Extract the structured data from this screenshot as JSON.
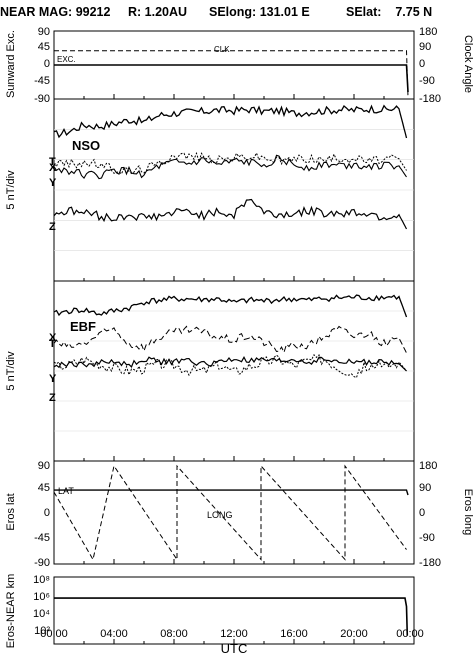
{
  "header": {
    "title": "NEAR MAG: 99212",
    "distance": "R: 1.20AU",
    "selong": "SElong: 131.01 E",
    "selat": "SElat:    7.75 N"
  },
  "x_axis": {
    "label": "UTC",
    "ticks": [
      "00:00",
      "04:00",
      "08:00",
      "12:00",
      "16:00",
      "20:00",
      "00:00"
    ]
  },
  "chart_data": [
    {
      "type": "line",
      "panel": "sunward-clock",
      "ylabel": "Sunward Exc.",
      "ylabel_right": "Clock Angle",
      "yticks": [
        "45",
        "0",
        "-45",
        "-90"
      ],
      "yticks_top": "90",
      "yticks_right": [
        "180",
        "90",
        "0",
        "-90",
        "-180"
      ],
      "ylim": [
        -90,
        90
      ],
      "x_hours": [
        0,
        23.5
      ],
      "series": [
        {
          "name": "EXC.",
          "values": [
            0,
            0
          ]
        },
        {
          "name": "CLK",
          "values": [
            39,
            39
          ]
        }
      ]
    },
    {
      "type": "line",
      "panel": "NSO",
      "label": "NSO",
      "ylabel": "5 nT/div",
      "x_hours": [
        0,
        1,
        2,
        3,
        4,
        5,
        6,
        7,
        8,
        9,
        10,
        11,
        12,
        13,
        14,
        15,
        16,
        17,
        18,
        19,
        20,
        21,
        22,
        23,
        23.5
      ],
      "series": [
        {
          "name": "T",
          "values": [
            22.5,
            23.0,
            24.0,
            23.8,
            24.2,
            24.8,
            24.5,
            25.5,
            25.8,
            26.0,
            26.1,
            26.3,
            26.2,
            26.4,
            26.1,
            26.2,
            25.8,
            26.0,
            26.2,
            26.4,
            26.3,
            26.5,
            26.4,
            26.5,
            22.0
          ]
        },
        {
          "name": "X",
          "values": [
            18.2,
            18.0,
            18.2,
            17.9,
            17.2,
            16.8,
            17.3,
            18.0,
            19.5,
            19.2,
            19.0,
            18.6,
            19.0,
            19.2,
            19.0,
            18.4,
            18.8,
            18.9,
            18.6,
            19.0,
            18.8,
            18.5,
            18.7,
            18.8,
            17.0
          ]
        },
        {
          "name": "Y",
          "values": [
            17.3,
            17.0,
            16.4,
            16.2,
            17.0,
            16.9,
            16.4,
            17.6,
            18.2,
            18.0,
            18.6,
            17.8,
            18.4,
            18.2,
            18.0,
            18.9,
            17.8,
            17.5,
            18.0,
            17.8,
            17.9,
            17.8,
            17.7,
            17.7,
            16.0
          ]
        },
        {
          "name": "Z",
          "values": [
            10.4,
            10.8,
            10.6,
            10.0,
            9.6,
            10.2,
            9.8,
            10.0,
            10.5,
            10.8,
            10.1,
            10.6,
            10.2,
            12.8,
            10.6,
            10.2,
            10.4,
            10.8,
            10.5,
            10.4,
            10.6,
            10.4,
            9.8,
            10.2,
            8.0
          ]
        }
      ]
    },
    {
      "type": "line",
      "panel": "EBF",
      "label": "EBF",
      "ylabel": "5 nT/div",
      "x_hours": [
        0,
        1,
        2,
        3,
        4,
        5,
        6,
        7,
        8,
        9,
        10,
        11,
        12,
        13,
        14,
        15,
        16,
        17,
        18,
        19,
        20,
        21,
        22,
        23,
        23.5
      ],
      "series": [
        {
          "name": "T",
          "values": [
            24.5,
            25.0,
            25.2,
            24.5,
            25.0,
            25.5,
            26.5,
            26.8,
            27.0,
            27.0,
            26.9,
            27.0,
            26.4,
            26.8,
            26.7,
            26.9,
            27.0,
            26.8,
            27.1,
            27.2,
            27.3,
            27.2,
            27.3,
            27.4,
            24.0
          ]
        },
        {
          "name": "X",
          "values": [
            19.8,
            19.0,
            19.5,
            21.0,
            22.0,
            19.5,
            19.0,
            20.6,
            21.5,
            21.8,
            21.5,
            20.5,
            20.2,
            20.9,
            19.8,
            18.4,
            19.3,
            19.2,
            20.8,
            22.0,
            20.8,
            21.4,
            19.5,
            20.5,
            18.0
          ]
        },
        {
          "name": "Y (dotted)",
          "values": [
            15.8,
            16.0,
            17.0,
            16.2,
            15.5,
            15.0,
            15.5,
            16.2,
            16.0,
            15.2,
            15.0,
            16.1,
            14.8,
            15.8,
            16.5,
            17.0,
            15.9,
            16.8,
            17.0,
            15.6,
            14.5,
            16.1,
            15.6,
            16.5,
            15.0
          ]
        },
        {
          "name": "Y",
          "values": [
            15.8,
            16.2,
            16.0,
            16.4,
            16.6,
            15.9,
            17.0,
            16.6,
            16.5,
            16.8,
            16.1,
            16.5,
            17.0,
            16.7,
            16.8,
            16.6,
            16.9,
            16.5,
            17.0,
            16.4,
            16.6,
            16.5,
            16.4,
            16.2,
            15.0
          ]
        }
      ]
    },
    {
      "type": "line",
      "panel": "eros-position",
      "ylabel": "Eros lat",
      "ylabel_right": "Eros long",
      "yticks": [
        "90",
        "45",
        "0",
        "-45",
        "-90"
      ],
      "yticks_right": [
        "180",
        "90",
        "0",
        "-90",
        "-180"
      ],
      "ylim": [
        -90,
        90
      ],
      "series": [
        {
          "name": "LAT",
          "x_hours": [
            0,
            23.5
          ],
          "values": [
            44,
            44
          ]
        },
        {
          "name": "LONG",
          "x_hours": [
            0,
            2.6,
            4.0,
            8.2,
            8.2,
            13.8,
            13.8,
            19.4,
            19.4,
            23.5
          ],
          "values_deg": [
            80,
            -178,
            180,
            -178,
            180,
            -178,
            180,
            -178,
            180,
            -140
          ]
        }
      ]
    },
    {
      "type": "line",
      "panel": "eros-near-distance",
      "ylabel": "Eros-NEAR km",
      "yscale": "log",
      "yticks": [
        "10⁸",
        "10⁶",
        "10⁴",
        "10²"
      ],
      "ylim": [
        10,
        1000000000.0
      ],
      "series": [
        {
          "name": "distance",
          "x_hours": [
            0,
            23.4,
            23.5,
            23.55
          ],
          "values": [
            3000000.0,
            3000000.0,
            300000.0,
            100
          ]
        }
      ]
    }
  ]
}
